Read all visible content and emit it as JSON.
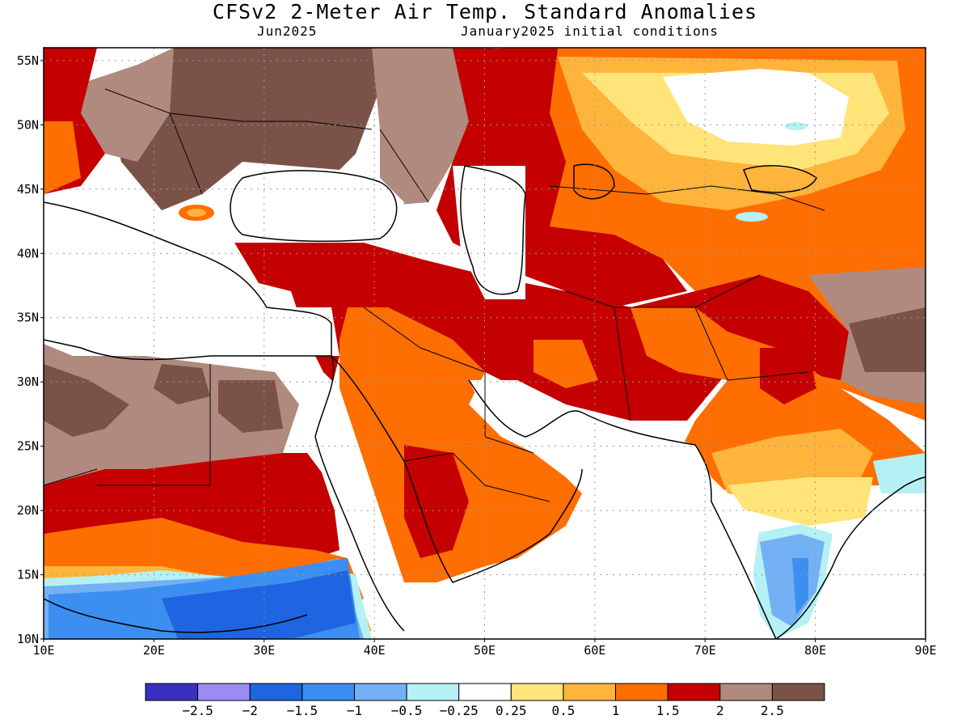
{
  "title": "CFSv2 2-Meter Air Temp. Standard Anomalies",
  "subtitle_left": "Jun2025",
  "subtitle_right": "January2025 initial conditions",
  "map": {
    "lon_range": [
      10,
      90
    ],
    "lat_range": [
      10,
      56
    ],
    "lon_ticks": [
      "10E",
      "20E",
      "30E",
      "40E",
      "50E",
      "60E",
      "70E",
      "80E",
      "90E"
    ],
    "lat_ticks": [
      "10N",
      "15N",
      "20N",
      "25N",
      "30N",
      "35N",
      "40N",
      "45N",
      "50N",
      "55N"
    ],
    "grid": "dotted"
  },
  "colorbar": {
    "colors": [
      "#3a2ec0",
      "#9b8df5",
      "#1f64e0",
      "#3c8ef0",
      "#74b0f4",
      "#b4f0f4",
      "#ffffff",
      "#ffe47a",
      "#ffb43c",
      "#ff6e00",
      "#c40000",
      "#b08a7e",
      "#7a5248"
    ],
    "labels": [
      "−2.5",
      "−2",
      "−1.5",
      "−1",
      "−0.5",
      "−0.25",
      "0.25",
      "0.5",
      "1",
      "1.5",
      "2",
      "2.5"
    ]
  }
}
